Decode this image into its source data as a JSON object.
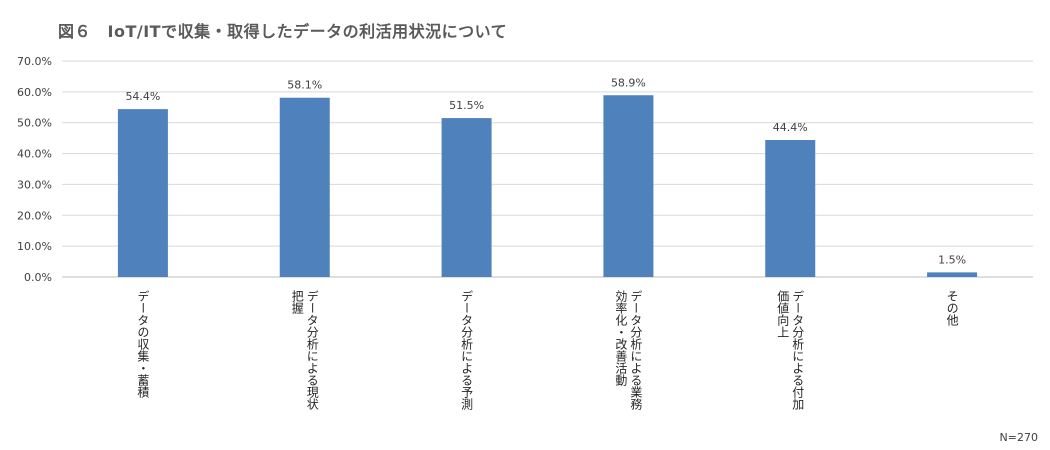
{
  "title": "図６　IoT/ITで収集・取得したデータの利活用状況について",
  "note": "N=270",
  "colors": {
    "bar": "#4f81bd",
    "grid": "#d9d9d9",
    "axis": "#bfbfbf",
    "title": "#5a5a5a"
  },
  "chart_data": {
    "type": "bar",
    "categories": [
      [
        "データの収集・蓄積"
      ],
      [
        "データ分析による現状",
        "把握"
      ],
      [
        "データ分析による予測"
      ],
      [
        "データ分析による業務",
        "効率化・改善活動"
      ],
      [
        "データ分析による付加",
        "価値向上"
      ],
      [
        "その他"
      ]
    ],
    "values": [
      54.4,
      58.1,
      51.5,
      58.9,
      44.4,
      1.5
    ],
    "value_labels": [
      "54.4%",
      "58.1%",
      "51.5%",
      "58.9%",
      "44.4%",
      "1.5%"
    ],
    "y_ticks": [
      "0.0%",
      "10.0%",
      "20.0%",
      "30.0%",
      "40.0%",
      "50.0%",
      "60.0%",
      "70.0%"
    ],
    "ylim": [
      0,
      70
    ],
    "grid": true,
    "xlabel": "",
    "ylabel": ""
  }
}
